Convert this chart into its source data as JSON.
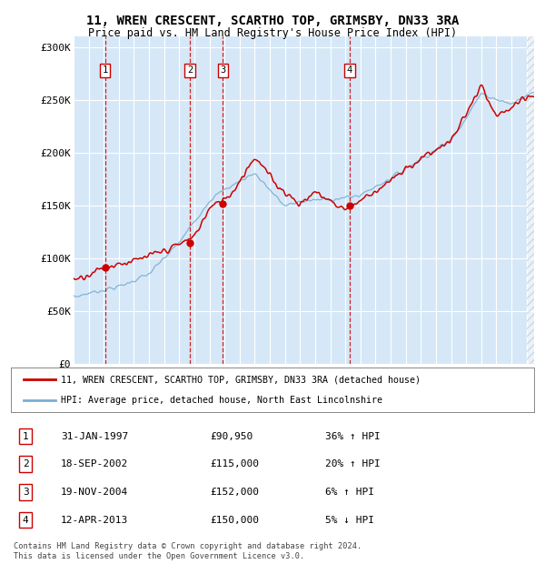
{
  "title1": "11, WREN CRESCENT, SCARTHO TOP, GRIMSBY, DN33 3RA",
  "title2": "Price paid vs. HM Land Registry's House Price Index (HPI)",
  "ylabel_ticks": [
    "£0",
    "£50K",
    "£100K",
    "£150K",
    "£200K",
    "£250K",
    "£300K"
  ],
  "ytick_values": [
    0,
    50000,
    100000,
    150000,
    200000,
    250000,
    300000
  ],
  "ylim": [
    0,
    310000
  ],
  "xlim_start": 1995,
  "xlim_end": 2025.5,
  "background_color": "#d6e8f7",
  "plot_bg": "#d6e8f7",
  "hatch_color": "#c0c0c0",
  "legend1_label": "11, WREN CRESCENT, SCARTHO TOP, GRIMSBY, DN33 3RA (detached house)",
  "legend2_label": "HPI: Average price, detached house, North East Lincolnshire",
  "transactions": [
    {
      "num": 1,
      "date": "31-JAN-1997",
      "price": "£90,950",
      "hpi": "36% ↑ HPI",
      "year": 1997.08,
      "value": 90950
    },
    {
      "num": 2,
      "date": "18-SEP-2002",
      "price": "£115,000",
      "hpi": "20% ↑ HPI",
      "year": 2002.71,
      "value": 115000
    },
    {
      "num": 3,
      "date": "19-NOV-2004",
      "price": "£152,000",
      "hpi": "6% ↑ HPI",
      "year": 2004.88,
      "value": 152000
    },
    {
      "num": 4,
      "date": "12-APR-2013",
      "price": "£150,000",
      "hpi": "5% ↓ HPI",
      "year": 2013.28,
      "value": 150000
    }
  ],
  "footer": "Contains HM Land Registry data © Crown copyright and database right 2024.\nThis data is licensed under the Open Government Licence v3.0.",
  "red_color": "#cc0000",
  "blue_color": "#7aadd4",
  "grid_color": "#ffffff",
  "hatch_start": 2025.0
}
